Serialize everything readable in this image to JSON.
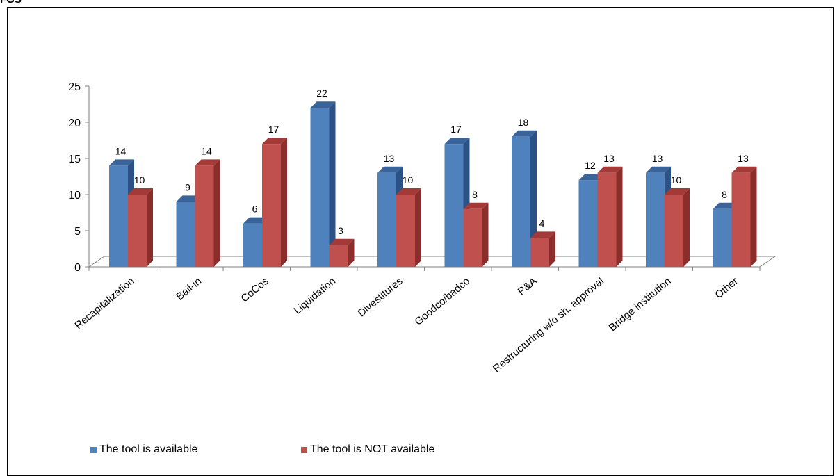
{
  "page": {
    "top_label": "FGS"
  },
  "chart_data": {
    "type": "bar",
    "categories": [
      "Recapitalization",
      "Bail-in",
      "CoCos",
      "Liquidation",
      "Divestitures",
      "Goodco/badco",
      "P&A",
      "Restructuring w/o sh. approval",
      "Bridge institution",
      "Other"
    ],
    "series": [
      {
        "name": "The tool is available",
        "values": [
          14,
          9,
          6,
          22,
          13,
          17,
          18,
          12,
          13,
          8
        ]
      },
      {
        "name": "The tool is NOT available",
        "values": [
          10,
          14,
          17,
          3,
          10,
          8,
          4,
          13,
          10,
          13
        ]
      }
    ],
    "y_ticks": [
      "0",
      "5",
      "10",
      "15",
      "20",
      "25"
    ],
    "ylim": [
      0,
      25
    ],
    "legend_position": "bottom-left",
    "colors": {
      "series1_front": "#4f81bd",
      "series1_side": "#2c5285",
      "series1_top": "#3a6499",
      "series2_front": "#c0504d",
      "series2_side": "#8b2d2b",
      "series2_top": "#a33a37"
    }
  }
}
